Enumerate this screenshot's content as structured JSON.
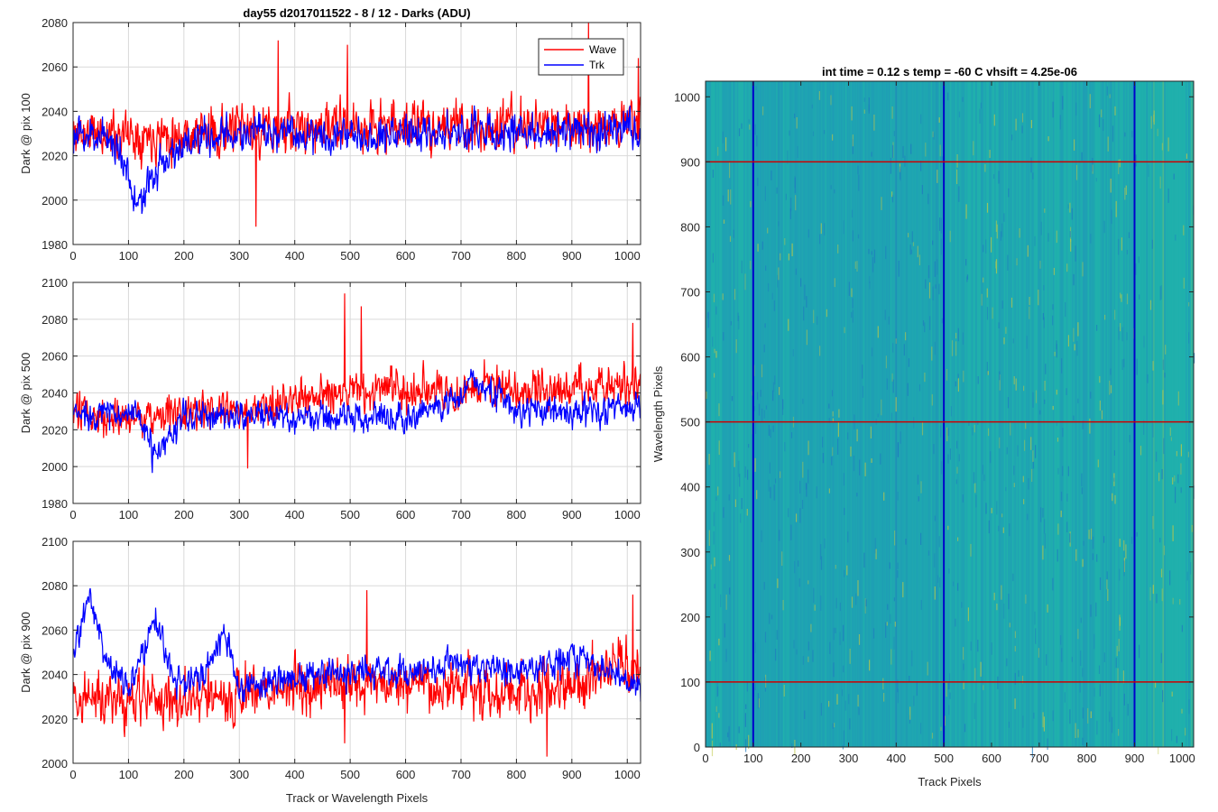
{
  "chart_data": [
    {
      "id": "panel-1",
      "type": "line",
      "title": "day55 d2017011522 - 8 / 12 - Darks (ADU)",
      "xlabel": "",
      "ylabel": "Dark @ pix 100",
      "xlim": [
        0,
        1024
      ],
      "ylim": [
        1980,
        2080
      ],
      "xticks": [
        0,
        100,
        200,
        300,
        400,
        500,
        600,
        700,
        800,
        900,
        1000
      ],
      "yticks": [
        1980,
        2000,
        2020,
        2040,
        2060,
        2080
      ],
      "grid": true,
      "legend": {
        "placement": "top-right",
        "entries": [
          "Wave",
          "Trk"
        ]
      },
      "series": [
        {
          "name": "Wave",
          "color": "#ff0000",
          "x": [
            0,
            100,
            200,
            300,
            400,
            500,
            600,
            700,
            800,
            900,
            1024
          ],
          "values": [
            2030,
            2030,
            2030,
            2031,
            2032,
            2033,
            2034,
            2033,
            2033,
            2034,
            2035
          ],
          "noise": 8,
          "seed": 11,
          "spikes": [
            [
              330,
              1988
            ],
            [
              370,
              2072
            ],
            [
              495,
              2070
            ],
            [
              930,
              2080
            ],
            [
              1020,
              2064
            ]
          ]
        },
        {
          "name": "Trk",
          "color": "#0000ff",
          "x": [
            0,
            60,
            100,
            110,
            130,
            160,
            200,
            300,
            400,
            500,
            600,
            700,
            800,
            900,
            1024
          ],
          "values": [
            2028,
            2030,
            2015,
            1997,
            2002,
            2018,
            2025,
            2030,
            2030,
            2030,
            2030,
            2031,
            2030,
            2031,
            2032
          ],
          "noise": 6,
          "seed": 23,
          "spikes": []
        }
      ]
    },
    {
      "id": "panel-2",
      "type": "line",
      "title": "",
      "xlabel": "",
      "ylabel": "Dark @ pix 500",
      "xlim": [
        0,
        1024
      ],
      "ylim": [
        1980,
        2100
      ],
      "xticks": [
        0,
        100,
        200,
        300,
        400,
        500,
        600,
        700,
        800,
        900,
        1000
      ],
      "yticks": [
        1980,
        2000,
        2020,
        2040,
        2060,
        2080,
        2100
      ],
      "grid": true,
      "series": [
        {
          "name": "Wave",
          "color": "#ff0000",
          "x": [
            0,
            100,
            200,
            300,
            400,
            500,
            600,
            700,
            800,
            900,
            1024
          ],
          "values": [
            2028,
            2028,
            2028,
            2030,
            2036,
            2040,
            2041,
            2042,
            2042,
            2043,
            2046
          ],
          "noise": 8,
          "seed": 31,
          "spikes": [
            [
              315,
              1999
            ],
            [
              490,
              2094
            ],
            [
              520,
              2087
            ],
            [
              1010,
              2078
            ]
          ]
        },
        {
          "name": "Trk",
          "color": "#0000ff",
          "x": [
            0,
            100,
            130,
            150,
            180,
            200,
            300,
            400,
            500,
            600,
            700,
            720,
            800,
            900,
            1024
          ],
          "values": [
            2028,
            2030,
            2020,
            2004,
            2018,
            2027,
            2028,
            2026,
            2027,
            2028,
            2036,
            2050,
            2030,
            2030,
            2032
          ],
          "noise": 6,
          "seed": 37,
          "spikes": []
        }
      ]
    },
    {
      "id": "panel-3",
      "type": "line",
      "title": "",
      "xlabel": "Track or Wavelength Pixels",
      "ylabel": "Dark @ pix 900",
      "xlim": [
        0,
        1024
      ],
      "ylim": [
        2000,
        2100
      ],
      "xticks": [
        0,
        100,
        200,
        300,
        400,
        500,
        600,
        700,
        800,
        900,
        1000
      ],
      "yticks": [
        2000,
        2020,
        2040,
        2060,
        2080,
        2100
      ],
      "grid": true,
      "series": [
        {
          "name": "Wave",
          "color": "#ff0000",
          "x": [
            0,
            100,
            200,
            300,
            400,
            500,
            600,
            700,
            800,
            900,
            1024
          ],
          "values": [
            2030,
            2028,
            2028,
            2030,
            2035,
            2036,
            2036,
            2035,
            2032,
            2036,
            2046
          ],
          "noise": 9,
          "seed": 41,
          "spikes": [
            [
              490,
              2009
            ],
            [
              530,
              2078
            ],
            [
              855,
              2003
            ],
            [
              1010,
              2076
            ]
          ]
        },
        {
          "name": "Trk",
          "color": "#0000ff",
          "x": [
            0,
            30,
            60,
            100,
            150,
            180,
            200,
            250,
            270,
            300,
            400,
            500,
            600,
            700,
            800,
            900,
            1024
          ],
          "values": [
            2050,
            2078,
            2045,
            2035,
            2066,
            2040,
            2035,
            2045,
            2060,
            2035,
            2038,
            2040,
            2042,
            2045,
            2040,
            2048,
            2036
          ],
          "noise": 5,
          "seed": 47,
          "spikes": []
        }
      ]
    },
    {
      "id": "heatmap",
      "type": "heatmap",
      "title": "int time = 0.12 s   temp = -60 C   vhsift = 4.25e-06",
      "xlabel": "Track Pixels",
      "ylabel": "Wavelength Pixels",
      "xlim": [
        0,
        1024
      ],
      "ylim": [
        0,
        1024
      ],
      "xticks": [
        0,
        100,
        200,
        300,
        400,
        500,
        600,
        700,
        800,
        900,
        1000
      ],
      "yticks": [
        0,
        100,
        200,
        300,
        400,
        500,
        600,
        700,
        800,
        900,
        1000
      ],
      "grid": false,
      "colormap": [
        "#1f7ac0",
        "#1f96b8",
        "#20b0ad",
        "#68c07a",
        "#c0c846"
      ],
      "column_bands": [
        {
          "from": 0,
          "to": 100,
          "level": 0.42
        },
        {
          "from": 100,
          "to": 500,
          "level": 0.3
        },
        {
          "from": 500,
          "to": 900,
          "level": 0.42
        },
        {
          "from": 900,
          "to": 1024,
          "level": 0.55
        }
      ],
      "markers": {
        "vertical": {
          "color": "#0000cc",
          "values": [
            100,
            500,
            900
          ]
        },
        "horizontal": {
          "color": "#cc0000",
          "values": [
            100,
            500,
            900
          ]
        }
      }
    }
  ]
}
